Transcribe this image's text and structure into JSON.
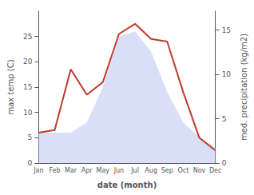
{
  "chart_data": {
    "type": "line",
    "categories": [
      "Jan",
      "Feb",
      "Mar",
      "Apr",
      "May",
      "Jun",
      "Jul",
      "Aug",
      "Sep",
      "Oct",
      "Nov",
      "Dec"
    ],
    "series": [
      {
        "type": "area",
        "color": "#b8c4ee",
        "values": [
          6.0,
          6.0,
          6.0,
          8.0,
          15.0,
          25.0,
          26.0,
          22.0,
          14.0,
          8.0,
          5.0,
          3.0
        ]
      },
      {
        "type": "line",
        "color": "#c0392b",
        "values": [
          6.0,
          6.5,
          18.5,
          13.5,
          16.0,
          25.5,
          27.5,
          24.5,
          24.0,
          14.0,
          5.0,
          2.5
        ]
      }
    ],
    "xlabel": "date (month)",
    "ylabel": "max temp (C)",
    "y2label": "med. precipitation (kg/m2)",
    "ylim": [
      0,
      30
    ],
    "yticks": [
      0,
      5,
      10,
      15,
      20,
      25
    ],
    "y2lim": [
      0,
      17.14
    ],
    "y2ticks": [
      0,
      5,
      10,
      15
    ],
    "grid": false
  }
}
